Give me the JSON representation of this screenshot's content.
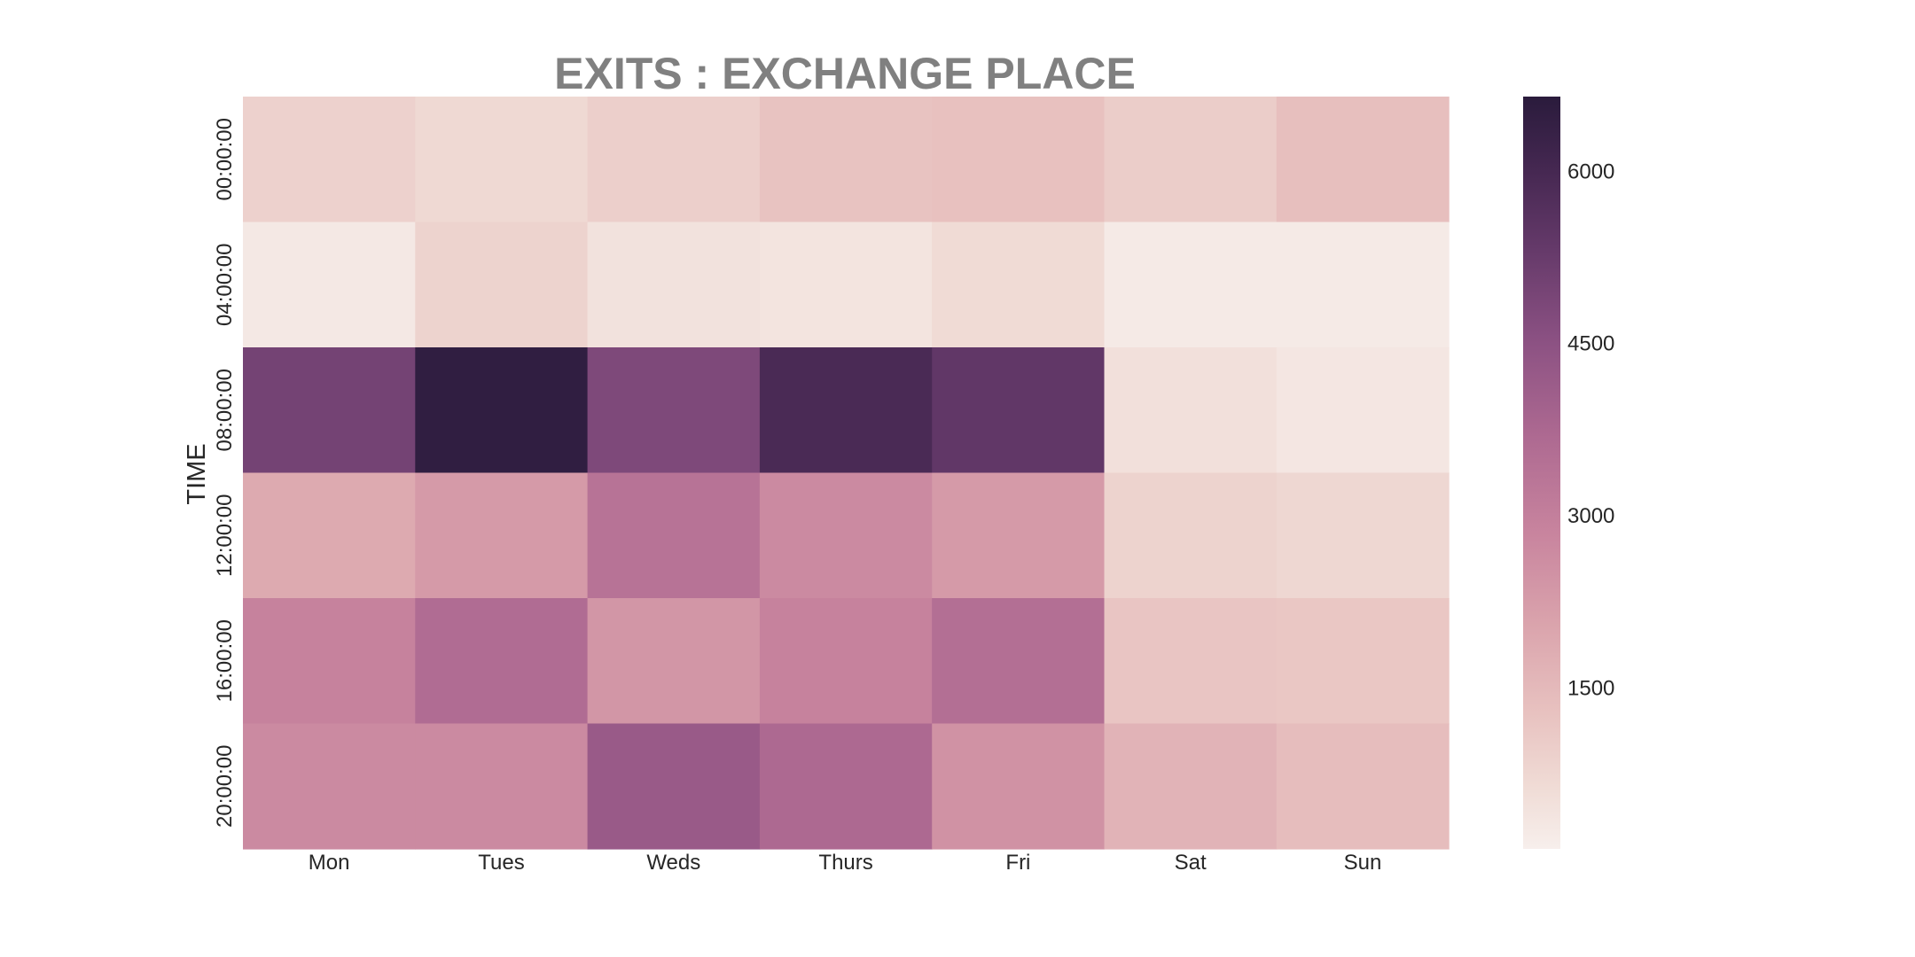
{
  "chart_data": {
    "type": "heatmap",
    "title": "EXITS : EXCHANGE PLACE",
    "xlabel": "",
    "ylabel": "TIME",
    "x_categories": [
      "Mon",
      "Tues",
      "Weds",
      "Thurs",
      "Fri",
      "Sat",
      "Sun"
    ],
    "y_categories": [
      "00:00:00",
      "04:00:00",
      "08:00:00",
      "12:00:00",
      "16:00:00",
      "20:00:00"
    ],
    "values": [
      [
        900,
        700,
        950,
        1250,
        1300,
        1000,
        1350
      ],
      [
        300,
        850,
        450,
        400,
        650,
        250,
        250
      ],
      [
        5000,
        6500,
        4800,
        5900,
        5400,
        500,
        350
      ],
      [
        1900,
        2300,
        3400,
        2700,
        2300,
        850,
        750
      ],
      [
        2900,
        3600,
        2400,
        2900,
        3500,
        1200,
        1150
      ],
      [
        2700,
        2700,
        4200,
        3700,
        2500,
        1650,
        1400
      ]
    ],
    "vmin": 100,
    "vmax": 6650,
    "colorbar": {
      "ticks": [
        1500,
        3000,
        4500,
        6000
      ],
      "tick_labels": [
        "1500",
        "3000",
        "4500",
        "6000"
      ]
    },
    "colors": {
      "low": "#f7efec",
      "high": "#2a1b3c",
      "title": "#808080"
    },
    "grid": false,
    "legend": "colorbar-right"
  }
}
